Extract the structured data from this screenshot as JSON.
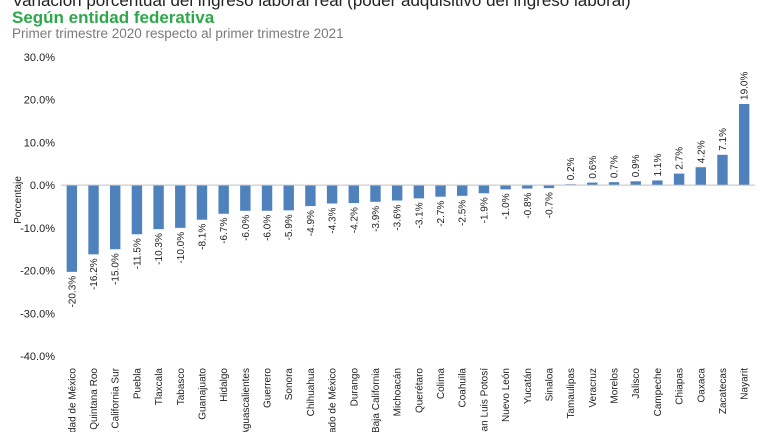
{
  "header": {
    "title": "Variación porcentual del ingreso laboral real  (poder adquisitivo del ingreso laboral)",
    "subtitle": "Según entidad federativa",
    "caption": "Primer trimestre 2020 respecto al primer trimestre 2021"
  },
  "colors": {
    "bar": "#4f81bd",
    "subtitle": "#2ea84a",
    "gridline": "#d9d9d9",
    "axis": "#bfbfbf"
  },
  "chart_data": {
    "type": "bar",
    "ylabel": "Porcentaje",
    "xlabel": "",
    "ylim": [
      -40,
      30
    ],
    "yticks": [
      30,
      20,
      10,
      0,
      -10,
      -20,
      -30,
      -40
    ],
    "ytick_labels": [
      "30.0%",
      "20.0%",
      "10.0%",
      "0.0%",
      "-10.0%",
      "-20.0%",
      "-30.0%",
      "-40.0%"
    ],
    "grid": false,
    "legend": "none",
    "categories": [
      "Ciudad de México",
      "Quintana Roo",
      "Baja California Sur",
      "Puebla",
      "Tlaxcala",
      "Tabasco",
      "Guanajuato",
      "Hidalgo",
      "Aguascalientes",
      "Guerrero",
      "Sonora",
      "Chihuahua",
      "Estado de México",
      "Durango",
      "Baja California",
      "Michoacán",
      "Querétaro",
      "Colima",
      "Coahuila",
      "San Luis Potosí",
      "Nuevo León",
      "Yucatán",
      "Sinaloa",
      "Tamaulipas",
      "Veracruz",
      "Morelos",
      "Jalisco",
      "Campeche",
      "Chiapas",
      "Oaxaca",
      "Zacatecas",
      "Nayarit"
    ],
    "values": [
      -20.3,
      -16.2,
      -15.0,
      -11.5,
      -10.3,
      -10.0,
      -8.1,
      -6.7,
      -6.0,
      -6.0,
      -5.9,
      -4.9,
      -4.3,
      -4.2,
      -3.9,
      -3.6,
      -3.1,
      -2.7,
      -2.5,
      -1.9,
      -1.0,
      -0.8,
      -0.7,
      0.2,
      0.6,
      0.7,
      0.9,
      1.1,
      2.7,
      4.2,
      7.1,
      19.0
    ],
    "data_labels": [
      "-20.3%",
      "-16.2%",
      "-15.0%",
      "-11.5%",
      "-10.3%",
      "-10.0%",
      "-8.1%",
      "-6.7%",
      "-6.0%",
      "-6.0%",
      "-5.9%",
      "-4.9%",
      "-4.3%",
      "-4.2%",
      "-3.9%",
      "-3.6%",
      "-3.1%",
      "-2.7%",
      "-2.5%",
      "-1.9%",
      "-1.0%",
      "-0.8%",
      "-0.7%",
      "0.2%",
      "0.6%",
      "0.7%",
      "0.9%",
      "1.1%",
      "2.7%",
      "4.2%",
      "7.1%",
      "19.0%"
    ]
  }
}
